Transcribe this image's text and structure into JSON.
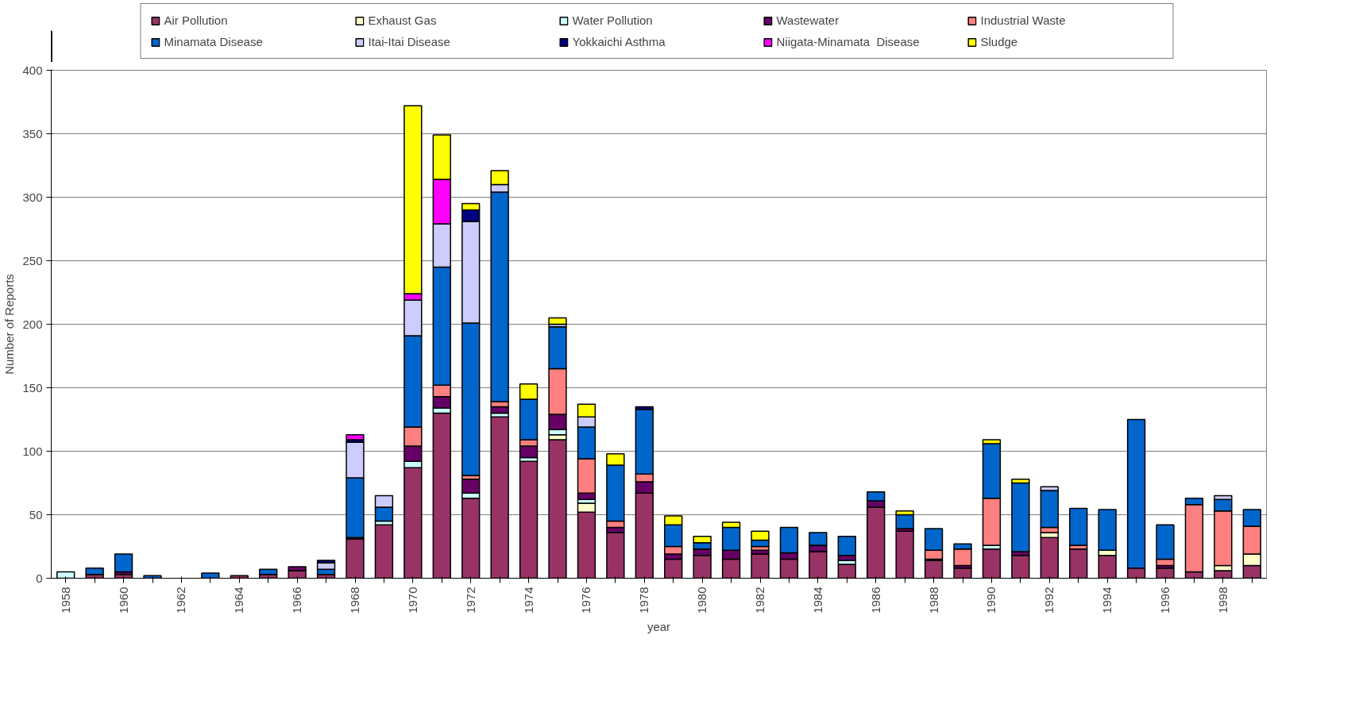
{
  "chart_data": {
    "type": "bar",
    "stacked": true,
    "xlabel": "year",
    "ylabel": "Number of Reports",
    "categories": [
      "1958",
      null,
      "1960",
      null,
      "1962",
      null,
      "1964",
      null,
      "1966",
      null,
      "1968",
      null,
      "1970",
      null,
      "1972",
      null,
      "1974",
      null,
      "1976",
      null,
      "1978",
      null,
      "1980",
      null,
      "1982",
      null,
      "1984",
      null,
      "1986",
      null,
      "1988",
      null,
      "1990",
      null,
      "1992",
      null,
      "1994",
      null,
      "1996",
      null,
      "1998",
      null
    ],
    "ylim": [
      0,
      400
    ],
    "yticks": [
      0,
      50,
      100,
      150,
      200,
      250,
      300,
      350,
      400
    ],
    "grid": "y",
    "legend": "top",
    "series": [
      {
        "name": "Air Pollution",
        "color": "#993366",
        "values": [
          null,
          3,
          3,
          null,
          null,
          null,
          2,
          3,
          6,
          3,
          31,
          42,
          87,
          130,
          63,
          127,
          92,
          109,
          52,
          36,
          67,
          15,
          18,
          15,
          19,
          15,
          21,
          11,
          56,
          37,
          14,
          8,
          23,
          18,
          32,
          23,
          18,
          8,
          8,
          5,
          6,
          10
        ]
      },
      {
        "name": "Exhaust Gas",
        "color": "#ffffcc",
        "values": [
          null,
          null,
          null,
          null,
          null,
          null,
          null,
          null,
          null,
          null,
          null,
          null,
          null,
          null,
          null,
          null,
          null,
          4,
          7,
          null,
          null,
          null,
          null,
          null,
          null,
          null,
          null,
          null,
          null,
          null,
          null,
          null,
          null,
          null,
          4,
          null,
          4,
          null,
          null,
          null,
          4,
          9
        ]
      },
      {
        "name": "Water Pollution",
        "color": "#ccffff",
        "values": [
          5,
          null,
          null,
          null,
          null,
          null,
          null,
          null,
          null,
          null,
          null,
          3,
          5,
          4,
          4,
          3,
          3,
          4,
          3,
          null,
          null,
          null,
          null,
          null,
          null,
          null,
          null,
          3,
          null,
          null,
          null,
          null,
          3,
          null,
          null,
          null,
          null,
          null,
          null,
          null,
          null,
          null
        ]
      },
      {
        "name": "Wastewater",
        "color": "#660066",
        "values": [
          null,
          null,
          2,
          null,
          null,
          null,
          null,
          null,
          3,
          null,
          1,
          null,
          12,
          9,
          11,
          5,
          9,
          12,
          5,
          4,
          9,
          4,
          5,
          7,
          3,
          5,
          5,
          4,
          5,
          2,
          1,
          2,
          null,
          3,
          null,
          null,
          null,
          null,
          2,
          null,
          null,
          null
        ]
      },
      {
        "name": "Industrial Waste",
        "color": "#ff8080",
        "values": [
          null,
          null,
          null,
          null,
          null,
          null,
          null,
          null,
          null,
          null,
          null,
          null,
          15,
          9,
          3,
          4,
          5,
          36,
          27,
          5,
          6,
          6,
          null,
          null,
          3,
          null,
          null,
          null,
          null,
          null,
          7,
          13,
          37,
          null,
          4,
          3,
          null,
          null,
          5,
          53,
          43,
          22
        ]
      },
      {
        "name": "Minamata Disease",
        "color": "#0066cc",
        "values": [
          null,
          5,
          14,
          2,
          null,
          4,
          null,
          4,
          null,
          4,
          47,
          11,
          72,
          93,
          120,
          165,
          32,
          33,
          25,
          44,
          51,
          17,
          5,
          18,
          5,
          20,
          10,
          15,
          7,
          11,
          17,
          4,
          43,
          54,
          29,
          29,
          32,
          117,
          27,
          5,
          9,
          13
        ]
      },
      {
        "name": "Itai-Itai Disease",
        "color": "#ccccff",
        "values": [
          null,
          null,
          null,
          null,
          null,
          null,
          null,
          null,
          null,
          5,
          28,
          9,
          28,
          34,
          80,
          6,
          null,
          2,
          8,
          null,
          null,
          null,
          null,
          null,
          null,
          null,
          null,
          null,
          null,
          null,
          null,
          null,
          null,
          null,
          3,
          null,
          null,
          null,
          null,
          null,
          3,
          null
        ]
      },
      {
        "name": "Yokkaichi Asthma",
        "color": "#000080",
        "values": [
          null,
          null,
          null,
          null,
          null,
          null,
          null,
          null,
          null,
          2,
          2,
          null,
          null,
          null,
          9,
          null,
          null,
          null,
          null,
          null,
          2,
          null,
          null,
          null,
          null,
          null,
          null,
          null,
          null,
          null,
          null,
          null,
          null,
          null,
          null,
          null,
          null,
          null,
          null,
          null,
          null,
          null
        ]
      },
      {
        "name": "Niigata-Minamata  Disease",
        "color": "#ff00ff",
        "values": [
          null,
          null,
          null,
          null,
          null,
          null,
          null,
          null,
          null,
          null,
          4,
          null,
          5,
          35,
          null,
          null,
          null,
          null,
          null,
          null,
          null,
          null,
          null,
          null,
          null,
          null,
          null,
          null,
          null,
          null,
          null,
          null,
          null,
          null,
          null,
          null,
          null,
          null,
          null,
          null,
          null,
          null
        ]
      },
      {
        "name": "Sludge",
        "color": "#ffff00",
        "values": [
          null,
          null,
          null,
          null,
          null,
          null,
          null,
          null,
          null,
          null,
          null,
          null,
          148,
          35,
          5,
          11,
          12,
          5,
          10,
          9,
          null,
          7,
          5,
          4,
          7,
          null,
          null,
          null,
          null,
          3,
          null,
          null,
          3,
          3,
          null,
          null,
          null,
          null,
          null,
          null,
          null,
          null
        ]
      }
    ]
  }
}
